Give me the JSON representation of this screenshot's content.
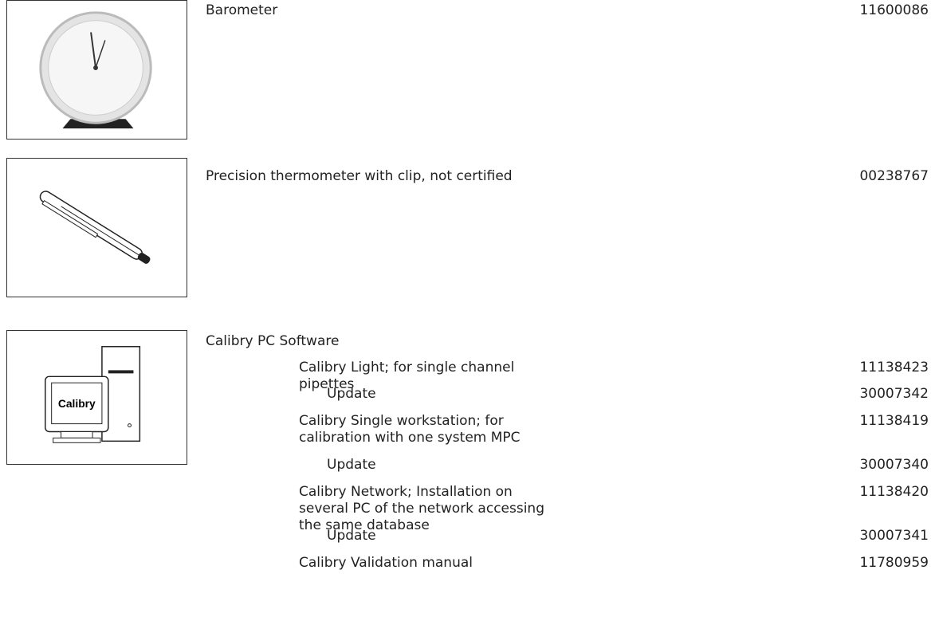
{
  "items": [
    {
      "name": "Barometer",
      "order_no": "11600086"
    },
    {
      "name": "Precision thermometer with clip, not certified",
      "order_no": "00238767"
    },
    {
      "name": "Calibry PC Software",
      "image_label": "Calibry",
      "sub_items": [
        {
          "name": "Calibry Light; for single channel pipettes",
          "order_no": "11138423"
        },
        {
          "name": "Update",
          "order_no": "30007342"
        },
        {
          "name": "Calibry Single workstation; for calibration with one system MPC",
          "order_no": "11138419"
        },
        {
          "name": "Update",
          "order_no": "30007340"
        },
        {
          "name": "Calibry Network; Installation on several PC of the network accessing the same database",
          "order_no": "11138420"
        },
        {
          "name": "Update",
          "order_no": "30007341"
        },
        {
          "name": "Calibry Validation manual",
          "order_no": "11780959"
        }
      ]
    }
  ]
}
